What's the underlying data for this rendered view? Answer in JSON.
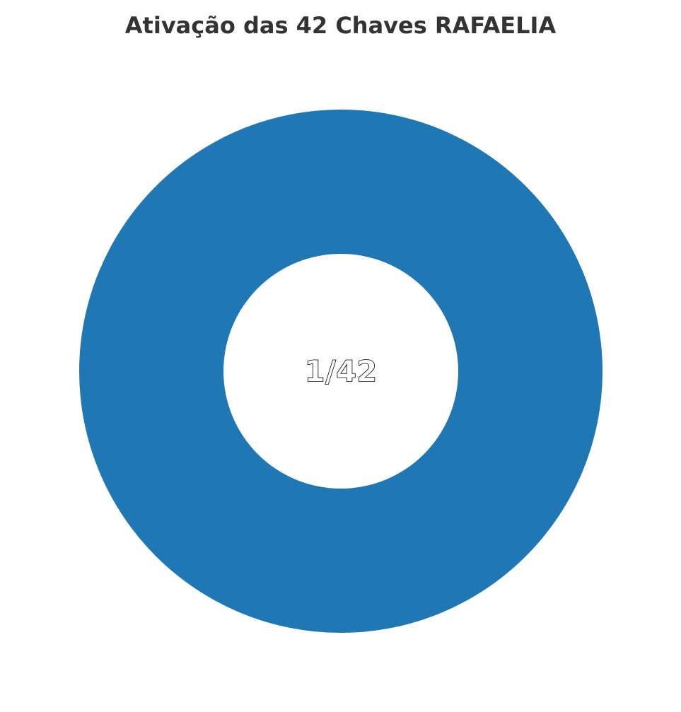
{
  "chart_data": {
    "type": "pie",
    "variant": "donut",
    "title": "Ativação das 42 Chaves RAFAELIA",
    "slices": [
      {
        "label": "",
        "value": 1,
        "color": "#1f77b4"
      }
    ],
    "center_label": "1/42",
    "colors": {
      "ring": "#1f77b4",
      "hole": "#ffffff"
    }
  }
}
